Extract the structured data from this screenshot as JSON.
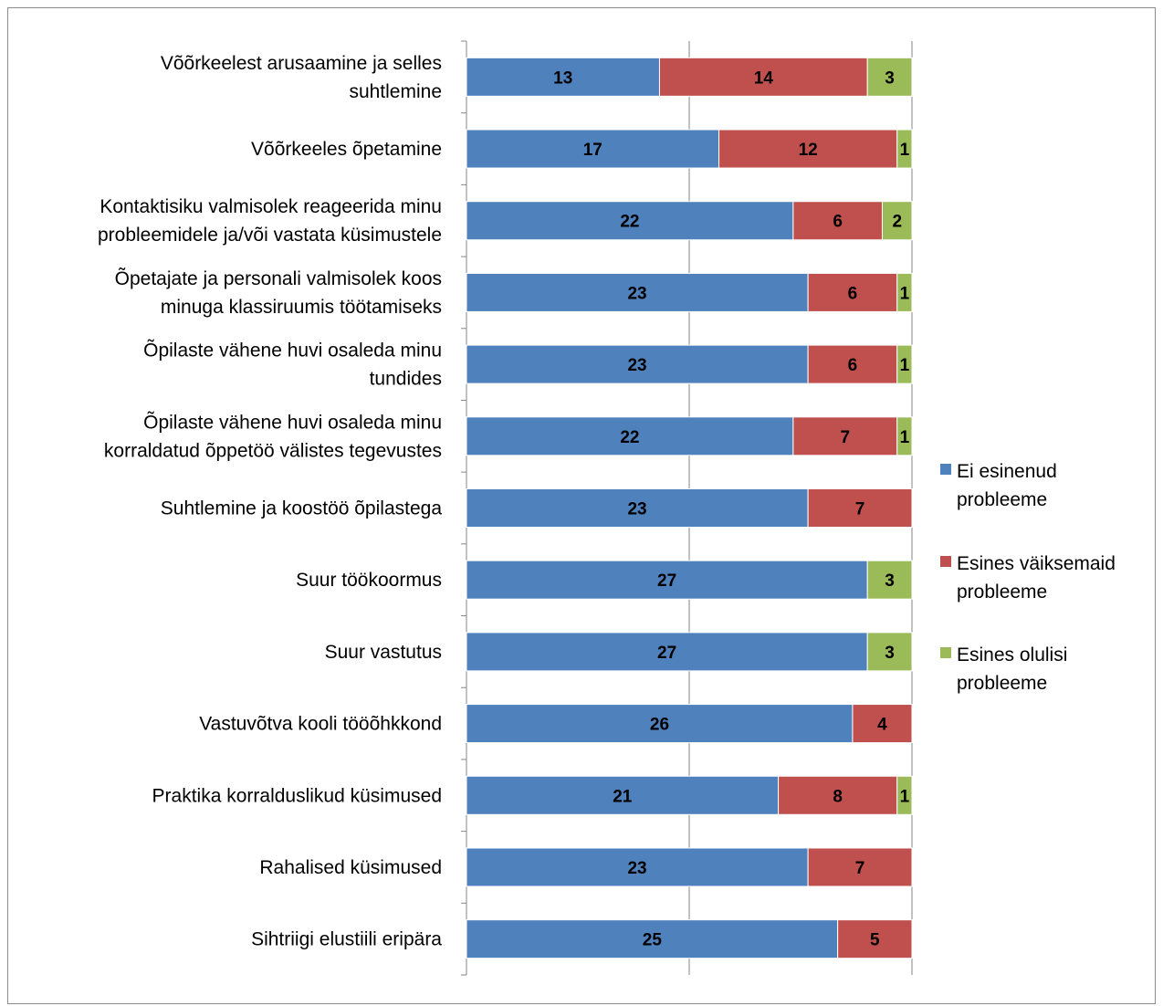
{
  "chart_data": {
    "type": "bar",
    "orientation": "horizontal",
    "stacked": "percent",
    "title": "",
    "xlabel": "",
    "ylabel": "",
    "grid": true,
    "legend_position": "right",
    "categories": [
      [
        "Võõrkeelest arusaamine ja selles",
        "suhtlemine"
      ],
      [
        "Võõrkeeles õpetamine"
      ],
      [
        "Kontaktisiku valmisolek reageerida minu",
        "probleemidele ja/või vastata küsimustele"
      ],
      [
        "Õpetajate ja personali valmisolek koos",
        "minuga klassiruumis töötamiseks"
      ],
      [
        "Õpilaste vähene huvi osaleda minu",
        "tundides"
      ],
      [
        "Õpilaste vähene huvi osaleda minu",
        "korraldatud õppetöö välistes tegevustes"
      ],
      [
        "Suhtlemine ja koostöö õpilastega"
      ],
      [
        "Suur töökoormus"
      ],
      [
        "Suur vastutus"
      ],
      [
        "Vastuvõtva kooli tööõhkkond"
      ],
      [
        "Praktika korralduslikud küsimused"
      ],
      [
        "Rahalised küsimused"
      ],
      [
        "Sihtriigi elustiili eripära"
      ]
    ],
    "series": [
      {
        "name": [
          "Ei esinenud",
          "probleeme"
        ],
        "color": "#4f81bd",
        "values": [
          13,
          17,
          22,
          23,
          23,
          22,
          23,
          27,
          27,
          26,
          21,
          23,
          25
        ]
      },
      {
        "name": [
          "Esines väiksemaid",
          "probleeme"
        ],
        "color": "#c0504d",
        "values": [
          14,
          12,
          6,
          6,
          6,
          7,
          7,
          0,
          0,
          4,
          8,
          7,
          5
        ]
      },
      {
        "name": [
          "Esines olulisi",
          "probleeme"
        ],
        "color": "#9bbb59",
        "values": [
          3,
          1,
          2,
          1,
          1,
          1,
          0,
          3,
          3,
          0,
          1,
          0,
          0
        ]
      }
    ]
  }
}
